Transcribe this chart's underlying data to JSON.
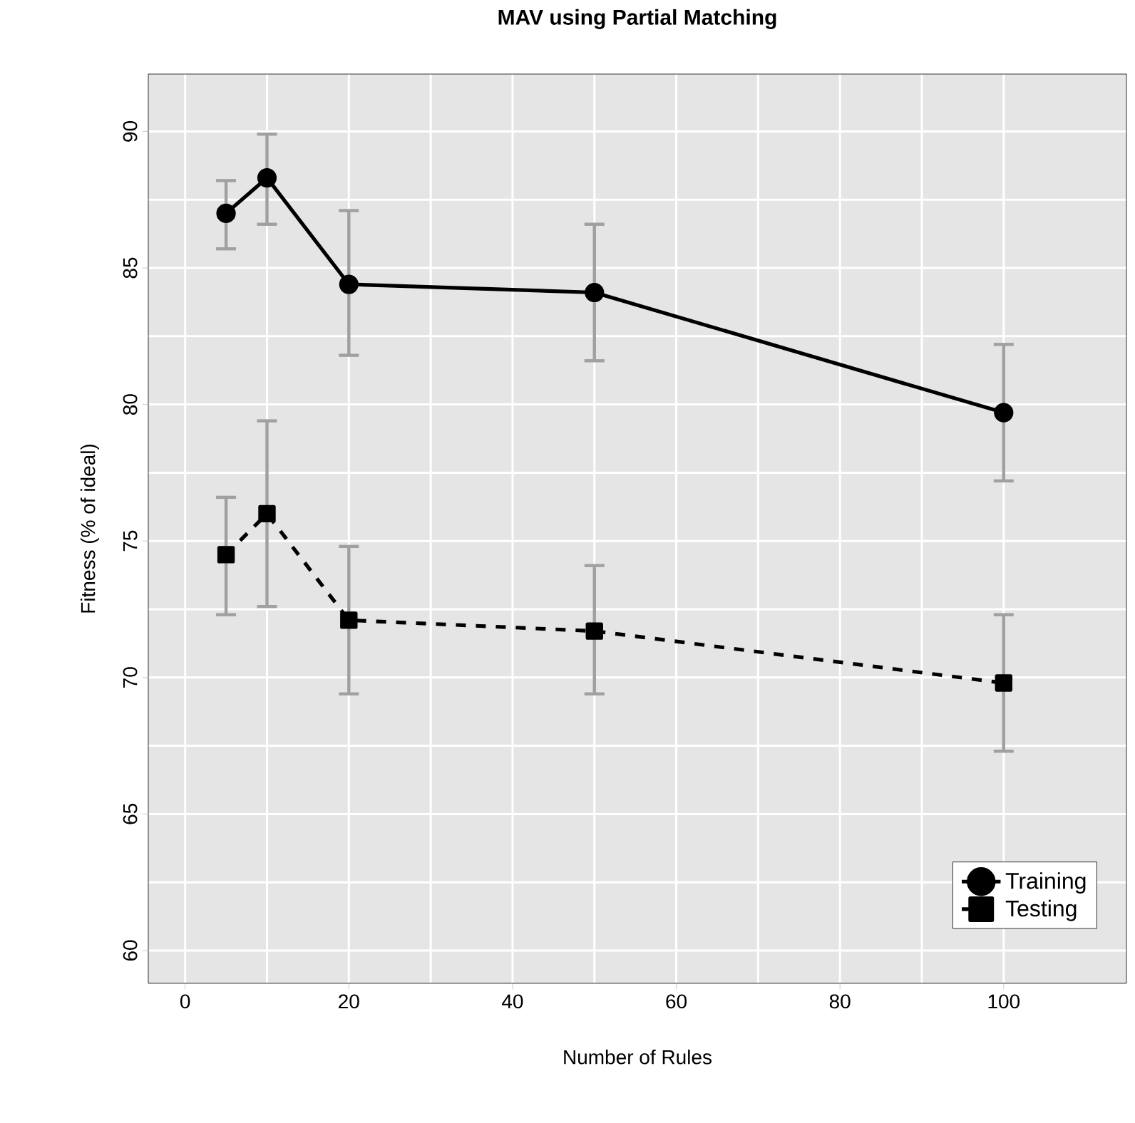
{
  "chart_data": {
    "type": "line",
    "title": "MAV using Partial Matching",
    "xlabel": "Number of Rules",
    "ylabel": "Fitness (% of ideal)",
    "x": [
      5,
      10,
      20,
      50,
      100
    ],
    "series": [
      {
        "name": "Training",
        "color": "#000000",
        "marker": "circle",
        "line_style": "solid",
        "values": [
          87.0,
          88.3,
          84.4,
          84.1,
          79.7
        ],
        "errors": [
          [
            85.7,
            88.2
          ],
          [
            86.6,
            89.9
          ],
          [
            81.8,
            87.1
          ],
          [
            81.6,
            86.6
          ],
          [
            77.2,
            82.2
          ]
        ]
      },
      {
        "name": "Testing",
        "color": "#000000",
        "marker": "square",
        "line_style": "dashed",
        "values": [
          74.5,
          76.0,
          72.1,
          71.7,
          69.8
        ],
        "errors": [
          [
            72.3,
            76.6
          ],
          [
            72.6,
            79.4
          ],
          [
            69.4,
            74.8
          ],
          [
            69.4,
            74.1
          ],
          [
            67.3,
            72.3
          ]
        ]
      }
    ],
    "xlim": [
      -4.5,
      115
    ],
    "ylim": [
      58.8,
      92.1
    ],
    "xticks": [
      0,
      20,
      40,
      60,
      80,
      100
    ],
    "yticks": [
      60,
      65,
      70,
      75,
      80,
      85,
      90
    ],
    "grid": true,
    "legend": "bottom right"
  }
}
